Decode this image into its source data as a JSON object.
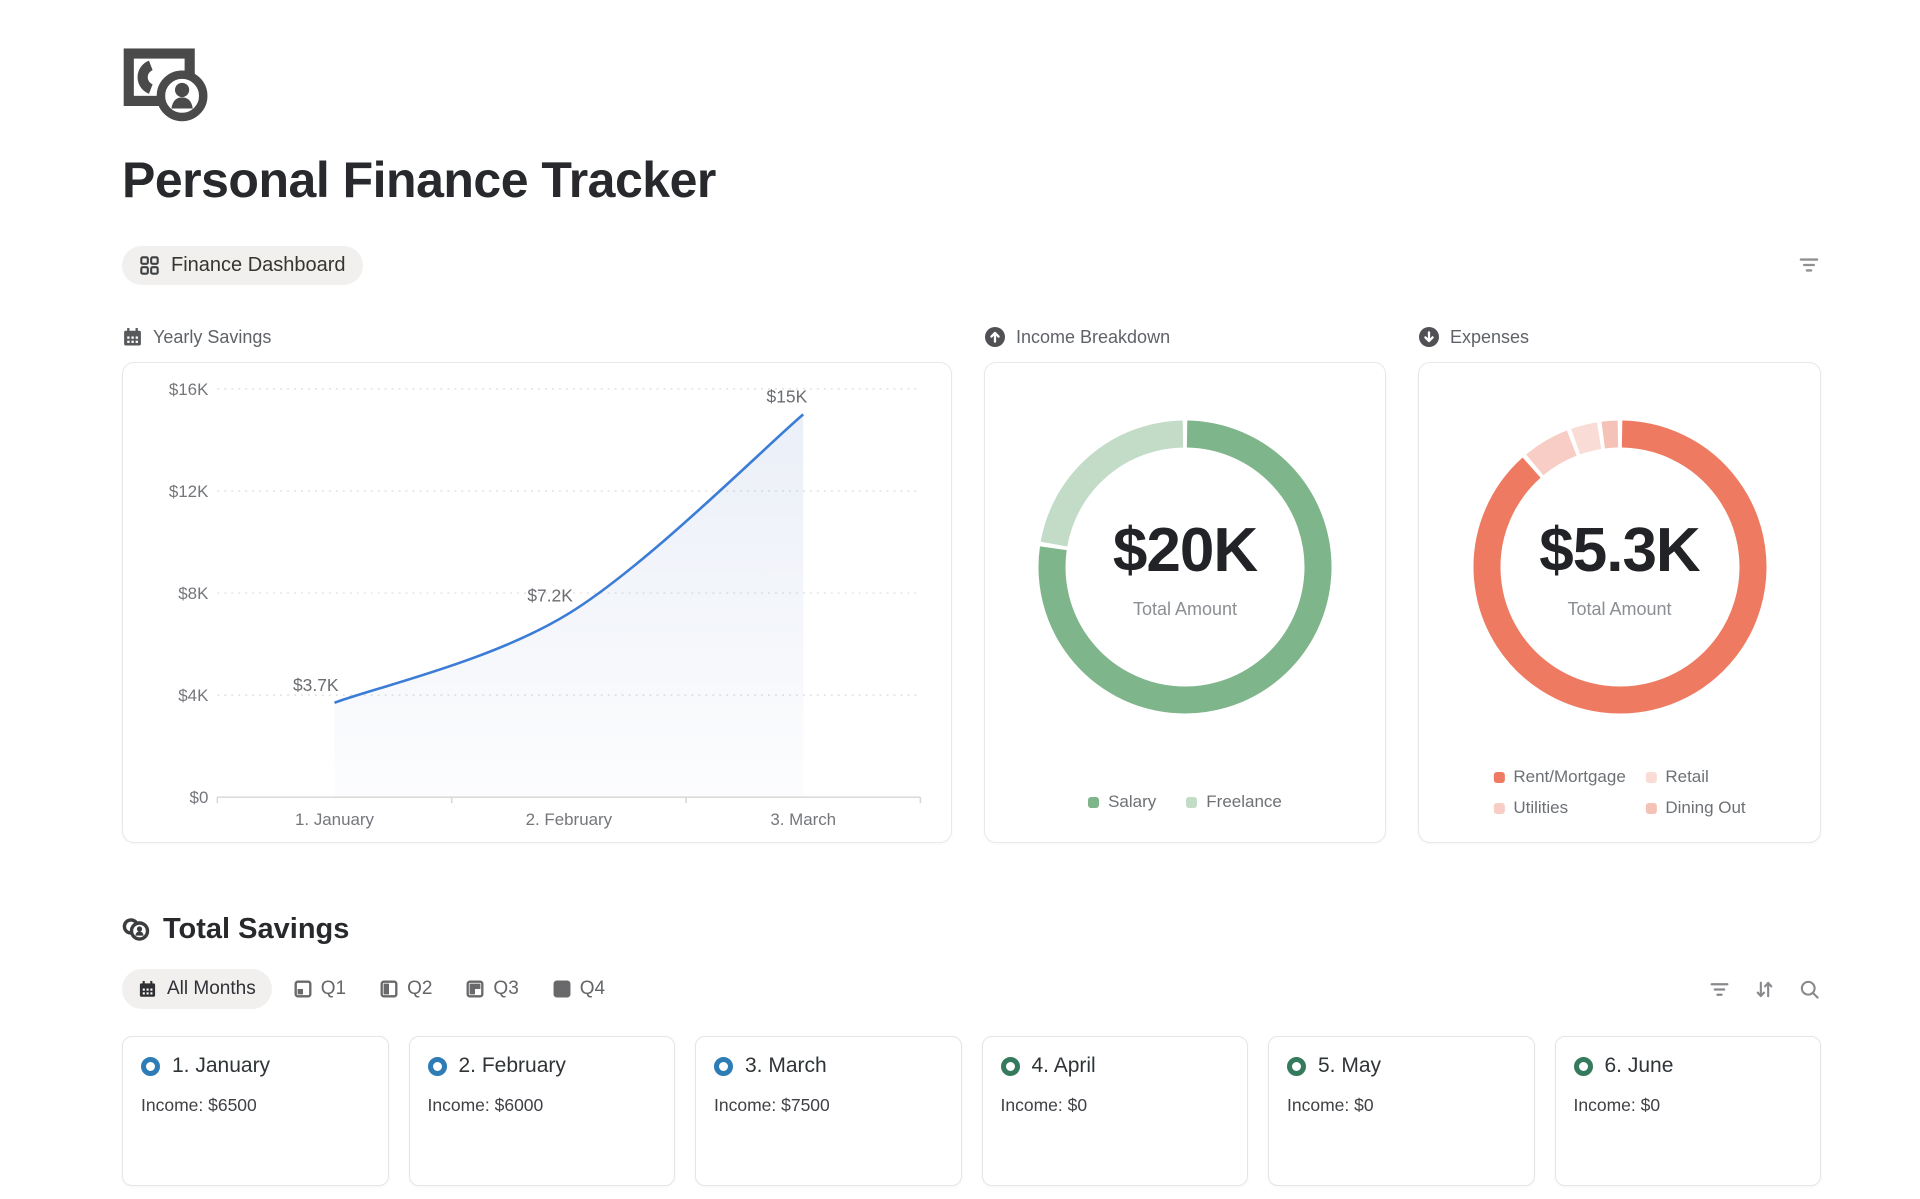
{
  "page": {
    "title": "Personal Finance Tracker",
    "view_tab": {
      "label": "Finance Dashboard"
    },
    "top_toolbar_icons": [
      "filter-icon"
    ]
  },
  "chart_data": [
    {
      "type": "line",
      "title": "Yearly Savings",
      "title_icon": "calendar-icon",
      "categories": [
        "1. January",
        "2. February",
        "3. March"
      ],
      "values": [
        3700,
        7200,
        15000
      ],
      "point_labels": [
        "$3.7K",
        "$7.2K",
        "$15K"
      ],
      "ylim": [
        0,
        16000
      ],
      "yticks": [
        {
          "value": 16000,
          "label": "$16K"
        },
        {
          "value": 12000,
          "label": "$12K"
        },
        {
          "value": 8000,
          "label": "$8K"
        },
        {
          "value": 4000,
          "label": "$4K"
        },
        {
          "value": 0,
          "label": "$0"
        }
      ],
      "grid": "dotted-horizontal",
      "line_color": "#3b7cd6",
      "area_color": "#6e8cc8"
    },
    {
      "type": "donut",
      "title": "Income Breakdown",
      "title_icon": "arrow-up-circle-icon",
      "center_value": "$20K",
      "center_label": "Total Amount",
      "slices": [
        {
          "name": "Salary",
          "value": 15500,
          "color": "#7eb58a"
        },
        {
          "name": "Freelance",
          "value": 4500,
          "color": "#c3dcc8"
        }
      ],
      "legend_order": [
        0,
        1
      ],
      "legend_layout": "row"
    },
    {
      "type": "donut",
      "title": "Expenses",
      "title_icon": "arrow-down-circle-icon",
      "center_value": "$5.3K",
      "center_label": "Total Amount",
      "slices": [
        {
          "name": "Rent/Mortgage",
          "value": 4700,
          "color": "#ee7b61"
        },
        {
          "name": "Utilities",
          "value": 300,
          "color": "#f7cdc5"
        },
        {
          "name": "Retail",
          "value": 180,
          "color": "#fadcd6"
        },
        {
          "name": "Dining Out",
          "value": 120,
          "color": "#f5c2b8"
        }
      ],
      "legend_order": [
        0,
        2,
        1,
        3
      ],
      "legend_layout": "grid-2col"
    }
  ],
  "total_savings": {
    "heading": "Total Savings",
    "heading_icon": "coins-icon",
    "tabs": [
      {
        "label": "All Months",
        "icon": "calendar-icon",
        "selected": true
      },
      {
        "label": "Q1",
        "icon": "q1-icon",
        "selected": false
      },
      {
        "label": "Q2",
        "icon": "q2-icon",
        "selected": false
      },
      {
        "label": "Q3",
        "icon": "q3-icon",
        "selected": false
      },
      {
        "label": "Q4",
        "icon": "q4-icon",
        "selected": false
      }
    ],
    "toolbar_icons": [
      "filter-icon",
      "sort-icon",
      "search-icon"
    ],
    "months": [
      {
        "title": "1. January",
        "income_label": "Income: $6500",
        "status_color": "#2d7cb5"
      },
      {
        "title": "2. February",
        "income_label": "Income: $6000",
        "status_color": "#2d7cb5"
      },
      {
        "title": "3. March",
        "income_label": "Income: $7500",
        "status_color": "#2d7cb5"
      },
      {
        "title": "4. April",
        "income_label": "Income: $0",
        "status_color": "#367a5e"
      },
      {
        "title": "5. May",
        "income_label": "Income: $0",
        "status_color": "#367a5e"
      },
      {
        "title": "6. June",
        "income_label": "Income: $0",
        "status_color": "#367a5e"
      }
    ]
  }
}
